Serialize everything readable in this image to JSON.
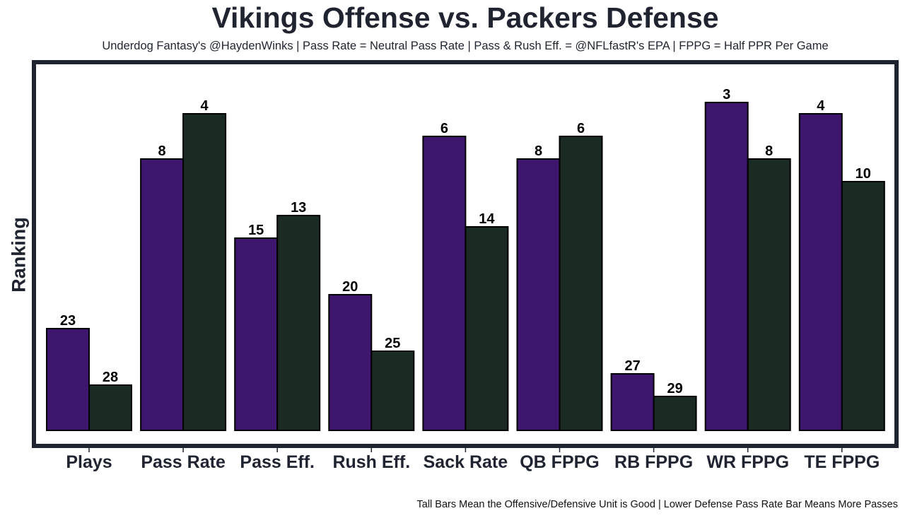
{
  "chart_data": {
    "type": "bar",
    "title": "Vikings Offense vs. Packers Defense",
    "subtitle": "Underdog Fantasy's @HaydenWinks | Pass Rate = Neutral Pass Rate | Pass & Rush Eff. = @NFLfastR's EPA | FPPG = Half PPR Per Game",
    "xlabel": "",
    "ylabel": "Ranking",
    "footer": "Tall Bars Mean the Offensive/Defensive Unit is Good | Lower Defense Pass Rate Bar Means More Passes",
    "categories": [
      "Plays",
      "Pass Rate",
      "Pass Eff.",
      "Rush Eff.",
      "Sack Rate",
      "QB FPPG",
      "RB FPPG",
      "WR FPPG",
      "TE FPPG"
    ],
    "series": [
      {
        "name": "Vikings Offense",
        "color": "#3f166d",
        "values": [
          23,
          8,
          15,
          20,
          6,
          8,
          27,
          3,
          4
        ]
      },
      {
        "name": "Packers Defense",
        "color": "#1b2a23",
        "values": [
          28,
          4,
          13,
          25,
          14,
          6,
          29,
          8,
          10
        ]
      }
    ],
    "value_meaning": "rank (1 = best; taller bar = better rank)",
    "rank_range": [
      1,
      32
    ],
    "grid": false,
    "legend": "none"
  }
}
